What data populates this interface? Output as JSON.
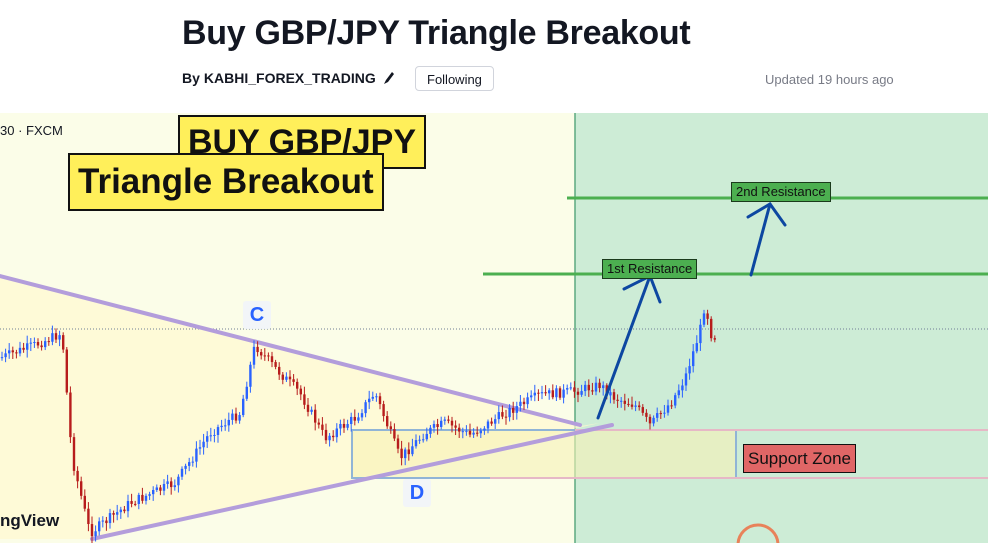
{
  "header": {
    "title": "Buy GBP/JPY Triangle Breakout",
    "by_prefix": "By",
    "author": "KABHI_FOREX_TRADING",
    "follow_label": "Following",
    "updated": "Updated 19 hours ago"
  },
  "chart": {
    "symbol_label": "30 · FXCM",
    "watermark": "ngView",
    "banner_line1": "BUY GBP/JPY",
    "banner_line2": "Triangle Breakout",
    "resistance_1_label": "1st Resistance",
    "resistance_2_label": "2nd Resistance",
    "support_label": "Support Zone",
    "point_c": "C",
    "point_d": "D",
    "colors": {
      "bull_candle": "#2962ff",
      "bear_candle": "#b71c1c",
      "resistance_line": "#4caf50",
      "triangle_line": "#b39ddb",
      "arrow": "#0d47a1",
      "banner": "#ffef5a",
      "support_label": "#e06666"
    }
  }
}
